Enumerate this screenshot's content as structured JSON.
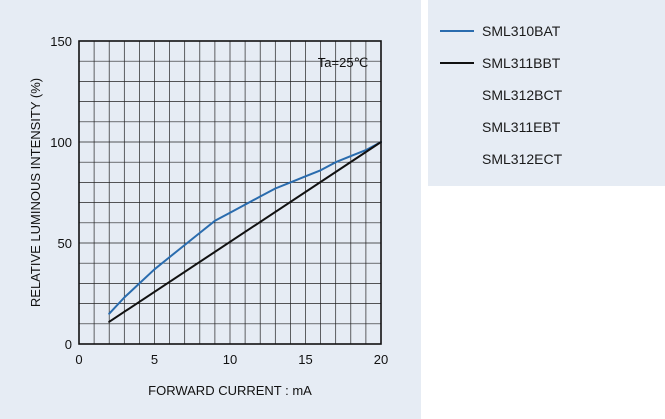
{
  "chart_data": {
    "type": "line",
    "xlabel": "FORWARD  CURRENT : mA",
    "ylabel": "RELATIVE  LUMINOUS  INTENSITY  (%)",
    "annotation": "Ta=25℃",
    "xlim": [
      0,
      20
    ],
    "ylim": [
      0,
      150
    ],
    "x_ticks": [
      "0",
      "5",
      "10",
      "15",
      "20"
    ],
    "y_ticks": [
      "0",
      "50",
      "100",
      "150"
    ],
    "grid": true,
    "legend_position": "right, outside plot",
    "series": [
      {
        "name": "SML310BAT",
        "color": "#2a6cae",
        "x": [
          2,
          3,
          4,
          5,
          6,
          7,
          8,
          9,
          10,
          11,
          12,
          13,
          14,
          15,
          16,
          17,
          18,
          19,
          20
        ],
        "y": [
          15,
          23,
          30,
          37,
          43,
          49,
          55,
          61,
          65,
          69,
          73,
          77,
          80,
          83,
          86,
          90,
          93,
          96,
          100
        ]
      },
      {
        "name": "SML311BBT",
        "color": "#111111",
        "x": [
          2,
          20
        ],
        "y": [
          11,
          100
        ]
      }
    ],
    "legend": [
      {
        "name": "SML310BAT",
        "color": "#2a6cae",
        "line": true
      },
      {
        "name": "SML311BBT",
        "color": "#111111",
        "line": true
      },
      {
        "name": "SML312BCT",
        "color": "",
        "line": false
      },
      {
        "name": "SML311EBT",
        "color": "",
        "line": false
      },
      {
        "name": "SML312ECT",
        "color": "",
        "line": false
      }
    ]
  }
}
